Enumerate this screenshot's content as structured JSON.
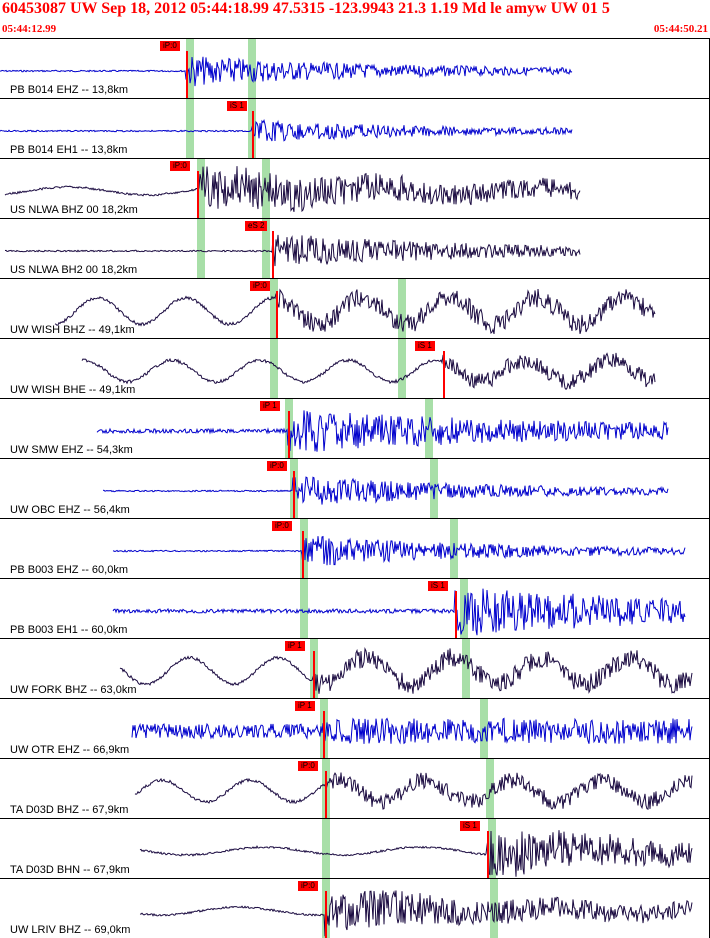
{
  "header": {
    "title": "60453087 UW Sep 18, 2012 05:44:18.99   47.5315 -123.9943 21.3 1.19 Md le amyw UW 01   5",
    "start_time": "05:44:12.99",
    "end_time": "05:44:50.21"
  },
  "colors": {
    "title": "#ff0000",
    "pick_tag": "#ff0000",
    "sp_marker": "#9fdc9f",
    "blue_trace": "#0000cc",
    "dark_trace": "#1a0a40",
    "theory_curve": "#000000"
  },
  "traces": [
    {
      "label": "PB B014 EHZ -- 13,8km",
      "pick": "iP:0",
      "color_key": "blue"
    },
    {
      "label": "PB B014 EH1 -- 13,8km",
      "pick": "iS 1",
      "color_key": "blue"
    },
    {
      "label": "US NLWA BHZ 00 18,2km",
      "pick": "iP:0",
      "color_key": "dark"
    },
    {
      "label": "US NLWA BH2 00 18,2km",
      "pick": "eS 2",
      "color_key": "dark"
    },
    {
      "label": "UW WISH BHZ -- 49,1km",
      "pick": "iP:0",
      "color_key": "dark"
    },
    {
      "label": "UW WISH BHE -- 49,1km",
      "pick": "iS 1",
      "color_key": "dark"
    },
    {
      "label": "UW SMW EHZ -- 54,3km",
      "pick": "iP 1",
      "color_key": "blue"
    },
    {
      "label": "UW OBC EHZ -- 56,4km",
      "pick": "iP:0",
      "color_key": "blue"
    },
    {
      "label": "PB B003 EHZ -- 60,0km",
      "pick": "iP:0",
      "color_key": "blue"
    },
    {
      "label": "PB B003 EH1 -- 60,0km",
      "pick": "iS 1",
      "color_key": "blue"
    },
    {
      "label": "UW FORK BHZ -- 63,0km",
      "pick": "iP 1",
      "color_key": "dark"
    },
    {
      "label": "UW OTR EHZ -- 66,9km",
      "pick": "iP 1",
      "color_key": "blue"
    },
    {
      "label": "TA D03D BHZ -- 67,9km",
      "pick": "iP:0",
      "color_key": "dark"
    },
    {
      "label": "TA D03D BHN -- 67,9km",
      "pick": "iS 1",
      "color_key": "dark"
    },
    {
      "label": "UW LRIV BHZ -- 69,0km",
      "pick": "iP:0",
      "color_key": "dark"
    }
  ]
}
